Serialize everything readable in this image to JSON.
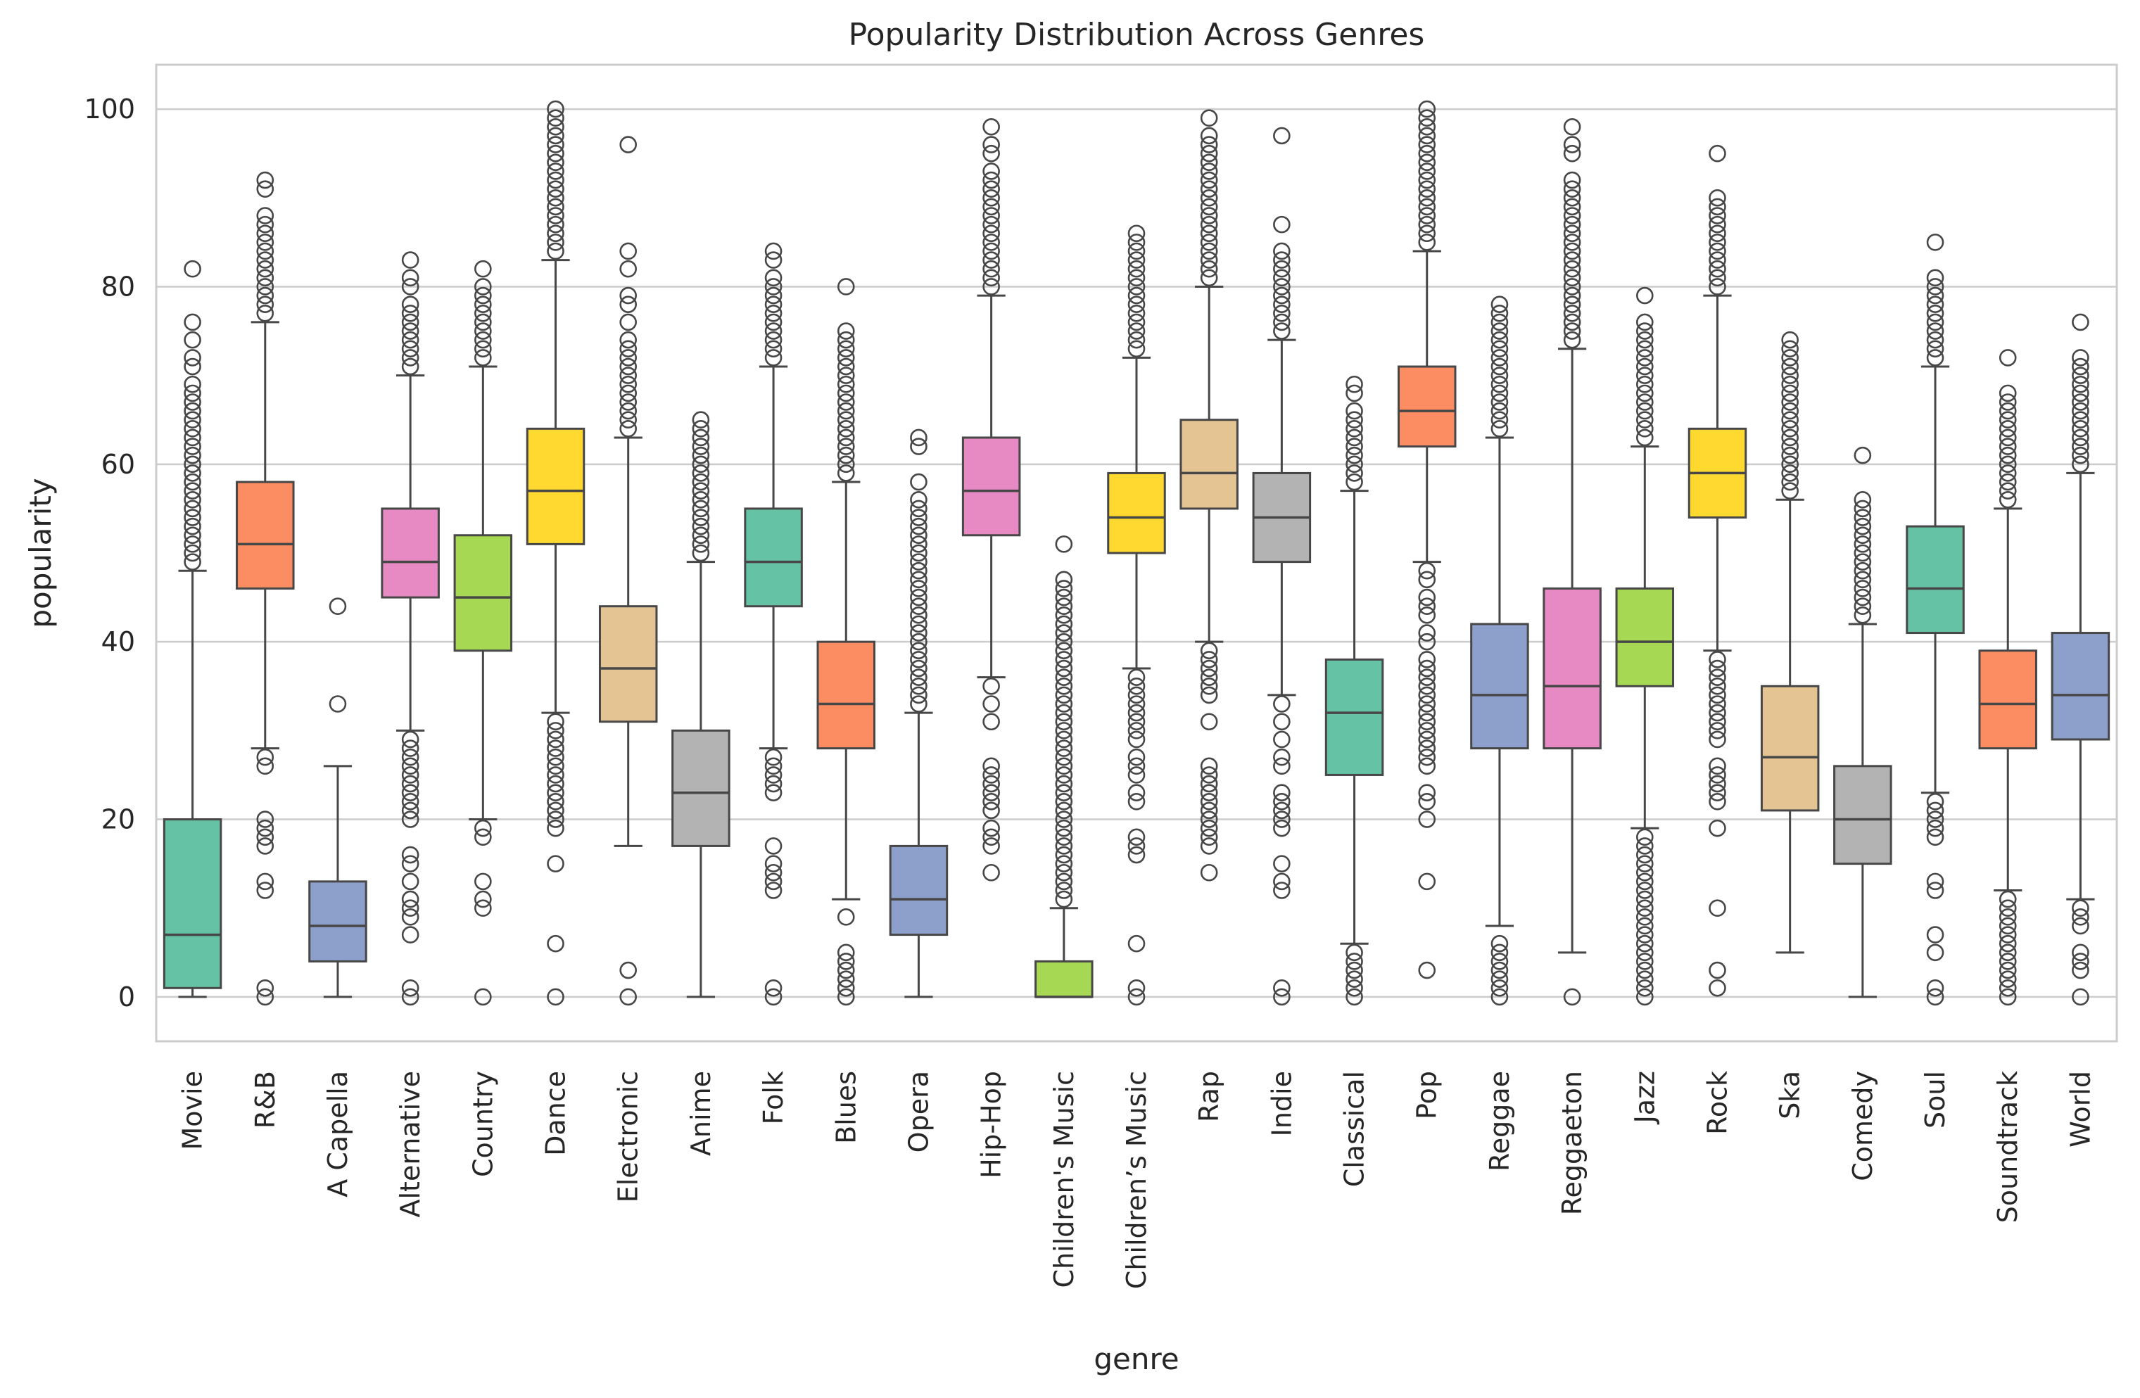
{
  "chart_data": {
    "type": "boxplot",
    "title": "Popularity Distribution Across Genres",
    "xlabel": "genre",
    "ylabel": "popularity",
    "ylim": [
      -5,
      105
    ],
    "yticks": [
      0,
      20,
      40,
      60,
      80,
      100
    ],
    "grid": true,
    "legend": "none",
    "categories": [
      "Movie",
      "R&B",
      "A Capella",
      "Alternative",
      "Country",
      "Dance",
      "Electronic",
      "Anime",
      "Folk",
      "Blues",
      "Opera",
      "Hip-Hop",
      "Children's Music",
      "Children’s Music",
      "Rap",
      "Indie",
      "Classical",
      "Pop",
      "Reggae",
      "Reggaeton",
      "Jazz",
      "Rock",
      "Ska",
      "Comedy",
      "Soul",
      "Soundtrack",
      "World"
    ],
    "colors": [
      "#66c2a5",
      "#fc8d62",
      "#8da0cb",
      "#e78ac3",
      "#a6d854",
      "#ffd92f",
      "#e5c494",
      "#b3b3b3"
    ],
    "boxes": [
      {
        "genre": "Movie",
        "whislo": 0,
        "q1": 1,
        "med": 7,
        "q3": 20,
        "whishi": 48,
        "fliers": [
          82,
          76,
          74,
          72,
          71,
          69,
          68,
          67,
          66,
          65,
          64,
          63,
          62,
          61,
          60,
          59,
          58,
          57,
          56,
          55,
          54,
          53,
          52,
          51,
          50,
          49
        ]
      },
      {
        "genre": "R&B",
        "whislo": 28,
        "q1": 46,
        "med": 51,
        "q3": 58,
        "whishi": 76,
        "fliers": [
          92,
          91,
          88,
          87,
          86,
          85,
          84,
          83,
          82,
          81,
          80,
          79,
          78,
          77,
          27,
          26,
          20,
          19,
          18,
          17,
          13,
          12,
          1,
          0
        ]
      },
      {
        "genre": "A Capella",
        "whislo": 0,
        "q1": 4,
        "med": 8,
        "q3": 13,
        "whishi": 26,
        "fliers": [
          44,
          33
        ]
      },
      {
        "genre": "Alternative",
        "whislo": 30,
        "q1": 45,
        "med": 49,
        "q3": 55,
        "whishi": 70,
        "fliers": [
          83,
          81,
          80,
          78,
          77,
          76,
          75,
          74,
          73,
          72,
          71,
          29,
          28,
          27,
          26,
          25,
          24,
          23,
          22,
          21,
          20,
          16,
          15,
          13,
          11,
          10,
          9,
          7,
          1,
          0
        ]
      },
      {
        "genre": "Country",
        "whislo": 20,
        "q1": 39,
        "med": 45,
        "q3": 52,
        "whishi": 71,
        "fliers": [
          82,
          80,
          79,
          78,
          77,
          76,
          75,
          74,
          73,
          72,
          19,
          18,
          13,
          11,
          10,
          0
        ]
      },
      {
        "genre": "Dance",
        "whislo": 32,
        "q1": 51,
        "med": 57,
        "q3": 64,
        "whishi": 83,
        "fliers": [
          100,
          99,
          98,
          97,
          96,
          95,
          94,
          93,
          92,
          91,
          90,
          89,
          88,
          87,
          86,
          85,
          84,
          31,
          30,
          29,
          28,
          27,
          26,
          25,
          24,
          23,
          22,
          21,
          20,
          19,
          15,
          6,
          0
        ]
      },
      {
        "genre": "Electronic",
        "whislo": 17,
        "q1": 31,
        "med": 37,
        "q3": 44,
        "whishi": 63,
        "fliers": [
          96,
          84,
          82,
          79,
          78,
          76,
          74,
          73,
          72,
          71,
          70,
          69,
          68,
          67,
          66,
          65,
          64,
          3,
          0
        ]
      },
      {
        "genre": "Anime",
        "whislo": 0,
        "q1": 17,
        "med": 23,
        "q3": 30,
        "whishi": 49,
        "fliers": [
          65,
          64,
          63,
          62,
          61,
          60,
          59,
          58,
          57,
          56,
          55,
          54,
          53,
          52,
          51,
          50
        ]
      },
      {
        "genre": "Folk",
        "whislo": 28,
        "q1": 44,
        "med": 49,
        "q3": 55,
        "whishi": 71,
        "fliers": [
          84,
          83,
          81,
          80,
          79,
          78,
          77,
          76,
          75,
          74,
          73,
          72,
          27,
          26,
          25,
          24,
          23,
          17,
          15,
          14,
          13,
          12,
          1,
          0
        ]
      },
      {
        "genre": "Blues",
        "whislo": 11,
        "q1": 28,
        "med": 33,
        "q3": 40,
        "whishi": 58,
        "fliers": [
          80,
          75,
          74,
          73,
          72,
          71,
          70,
          69,
          68,
          67,
          66,
          65,
          64,
          63,
          62,
          61,
          60,
          59,
          9,
          5,
          4,
          3,
          2,
          1,
          0
        ]
      },
      {
        "genre": "Opera",
        "whislo": 0,
        "q1": 7,
        "med": 11,
        "q3": 17,
        "whishi": 32,
        "fliers": [
          63,
          62,
          58,
          56,
          55,
          54,
          53,
          52,
          51,
          50,
          49,
          48,
          47,
          46,
          45,
          44,
          43,
          42,
          41,
          40,
          39,
          38,
          37,
          36,
          35,
          34,
          33
        ]
      },
      {
        "genre": "Hip-Hop",
        "whislo": 36,
        "q1": 52,
        "med": 57,
        "q3": 63,
        "whishi": 79,
        "fliers": [
          98,
          96,
          95,
          93,
          92,
          91,
          90,
          89,
          88,
          87,
          86,
          85,
          84,
          83,
          82,
          81,
          80,
          35,
          33,
          31,
          26,
          25,
          24,
          23,
          22,
          21,
          19,
          18,
          17,
          14
        ]
      },
      {
        "genre": "Children's Music",
        "whislo": 0,
        "q1": 0,
        "med": 0,
        "q3": 4,
        "whishi": 10,
        "fliers": [
          51,
          47,
          46,
          45,
          44,
          43,
          42,
          41,
          40,
          39,
          38,
          37,
          36,
          35,
          34,
          33,
          32,
          31,
          30,
          29,
          28,
          27,
          26,
          25,
          24,
          23,
          22,
          21,
          20,
          19,
          18,
          17,
          16,
          15,
          14,
          13,
          12,
          11
        ]
      },
      {
        "genre": "Children’s Music",
        "whislo": 37,
        "q1": 50,
        "med": 54,
        "q3": 59,
        "whishi": 72,
        "fliers": [
          86,
          85,
          84,
          83,
          82,
          81,
          80,
          79,
          78,
          77,
          76,
          75,
          74,
          73,
          36,
          35,
          34,
          33,
          32,
          31,
          30,
          29,
          27,
          26,
          25,
          23,
          22,
          18,
          17,
          16,
          6,
          1,
          0
        ]
      },
      {
        "genre": "Rap",
        "whislo": 40,
        "q1": 55,
        "med": 59,
        "q3": 65,
        "whishi": 80,
        "fliers": [
          99,
          97,
          96,
          95,
          94,
          93,
          92,
          91,
          90,
          89,
          88,
          87,
          86,
          85,
          84,
          83,
          82,
          81,
          39,
          38,
          37,
          36,
          35,
          34,
          31,
          26,
          25,
          24,
          23,
          22,
          21,
          20,
          19,
          18,
          17,
          14
        ]
      },
      {
        "genre": "Indie",
        "whislo": 34,
        "q1": 49,
        "med": 54,
        "q3": 59,
        "whishi": 74,
        "fliers": [
          97,
          87,
          84,
          83,
          82,
          81,
          80,
          79,
          78,
          77,
          76,
          75,
          33,
          31,
          29,
          27,
          26,
          23,
          22,
          21,
          20,
          19,
          15,
          13,
          12,
          1,
          0
        ]
      },
      {
        "genre": "Classical",
        "whislo": 6,
        "q1": 25,
        "med": 32,
        "q3": 38,
        "whishi": 57,
        "fliers": [
          69,
          68,
          66,
          65,
          64,
          63,
          62,
          61,
          60,
          59,
          58,
          5,
          4,
          3,
          2,
          1,
          0
        ]
      },
      {
        "genre": "Pop",
        "whislo": 49,
        "q1": 62,
        "med": 66,
        "q3": 71,
        "whishi": 84,
        "fliers": [
          100,
          99,
          98,
          97,
          96,
          95,
          94,
          93,
          92,
          91,
          90,
          89,
          88,
          87,
          86,
          85,
          48,
          47,
          45,
          44,
          43,
          41,
          40,
          38,
          37,
          36,
          35,
          34,
          33,
          32,
          31,
          30,
          29,
          28,
          27,
          26,
          23,
          22,
          20,
          13,
          3
        ]
      },
      {
        "genre": "Reggae",
        "whislo": 8,
        "q1": 28,
        "med": 34,
        "q3": 42,
        "whishi": 63,
        "fliers": [
          78,
          77,
          76,
          75,
          74,
          73,
          72,
          71,
          70,
          69,
          68,
          67,
          66,
          65,
          64,
          6,
          5,
          4,
          3,
          2,
          1,
          0
        ]
      },
      {
        "genre": "Reggaeton",
        "whislo": 5,
        "q1": 28,
        "med": 35,
        "q3": 46,
        "whishi": 73,
        "fliers": [
          98,
          96,
          95,
          92,
          91,
          90,
          89,
          88,
          87,
          86,
          85,
          84,
          83,
          82,
          81,
          80,
          79,
          78,
          77,
          76,
          75,
          74,
          0
        ]
      },
      {
        "genre": "Jazz",
        "whislo": 19,
        "q1": 35,
        "med": 40,
        "q3": 46,
        "whishi": 62,
        "fliers": [
          79,
          76,
          75,
          74,
          73,
          72,
          71,
          70,
          69,
          68,
          67,
          66,
          65,
          64,
          63,
          18,
          17,
          16,
          15,
          14,
          13,
          12,
          11,
          10,
          9,
          8,
          7,
          6,
          5,
          4,
          3,
          2,
          1,
          0
        ]
      },
      {
        "genre": "Rock",
        "whislo": 39,
        "q1": 54,
        "med": 59,
        "q3": 64,
        "whishi": 79,
        "fliers": [
          95,
          90,
          89,
          88,
          87,
          86,
          85,
          84,
          83,
          82,
          81,
          80,
          38,
          37,
          36,
          35,
          34,
          33,
          32,
          31,
          30,
          29,
          26,
          25,
          24,
          23,
          22,
          19,
          10,
          3,
          1
        ]
      },
      {
        "genre": "Ska",
        "whislo": 5,
        "q1": 21,
        "med": 27,
        "q3": 35,
        "whishi": 56,
        "fliers": [
          74,
          73,
          72,
          71,
          70,
          69,
          68,
          67,
          66,
          65,
          64,
          63,
          62,
          61,
          60,
          59,
          58,
          57
        ]
      },
      {
        "genre": "Comedy",
        "whislo": 0,
        "q1": 15,
        "med": 20,
        "q3": 26,
        "whishi": 42,
        "fliers": [
          61,
          56,
          55,
          54,
          53,
          52,
          51,
          50,
          49,
          48,
          47,
          46,
          45,
          44,
          43
        ]
      },
      {
        "genre": "Soul",
        "whislo": 23,
        "q1": 41,
        "med": 46,
        "q3": 53,
        "whishi": 71,
        "fliers": [
          85,
          81,
          80,
          79,
          78,
          77,
          76,
          75,
          74,
          73,
          72,
          22,
          21,
          20,
          19,
          18,
          13,
          12,
          7,
          5,
          1,
          0
        ]
      },
      {
        "genre": "Soundtrack",
        "whislo": 12,
        "q1": 28,
        "med": 33,
        "q3": 39,
        "whishi": 55,
        "fliers": [
          72,
          68,
          67,
          66,
          65,
          64,
          63,
          62,
          61,
          60,
          59,
          58,
          57,
          56,
          11,
          10,
          9,
          8,
          7,
          6,
          5,
          4,
          3,
          2,
          1,
          0
        ]
      },
      {
        "genre": "World",
        "whislo": 11,
        "q1": 29,
        "med": 34,
        "q3": 41,
        "whishi": 59,
        "fliers": [
          76,
          72,
          71,
          70,
          69,
          68,
          67,
          66,
          65,
          64,
          63,
          62,
          61,
          60,
          10,
          9,
          8,
          5,
          4,
          3,
          0
        ]
      }
    ]
  }
}
